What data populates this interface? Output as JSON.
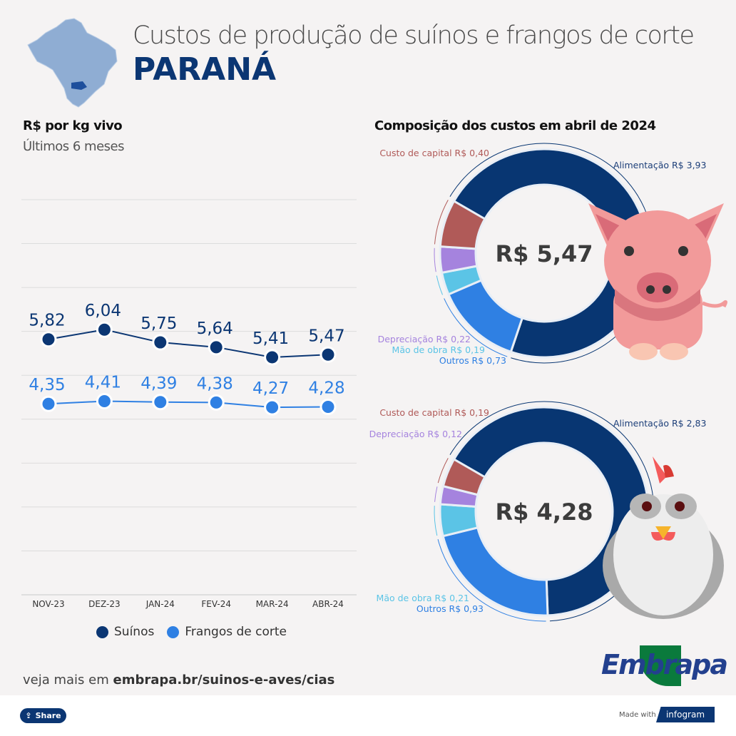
{
  "header": {
    "title": "Custos de produção de suínos e frangos de corte",
    "state": "PARANÁ",
    "map_icon": "brazil-map-parana-highlighted"
  },
  "line_section": {
    "title": "R$ por kg vivo",
    "subtitle": "Últimos 6 meses"
  },
  "donut_section": {
    "title": "Composição dos custos em abril de 2024"
  },
  "chart_data": [
    {
      "type": "line",
      "categories": [
        "NOV-23",
        "DEZ-23",
        "JAN-24",
        "FEV-24",
        "MAR-24",
        "ABR-24"
      ],
      "ylim": [
        0,
        9
      ],
      "grid": true,
      "legend_placement": "bottom",
      "series": [
        {
          "name": "Suínos",
          "color": "#0b3673",
          "values": [
            5.82,
            6.04,
            5.75,
            5.64,
            5.41,
            5.47
          ],
          "labels": [
            "5,82",
            "6,04",
            "5,75",
            "5,64",
            "5,41",
            "5,47"
          ]
        },
        {
          "name": "Frangos de corte",
          "color": "#2f80e3",
          "values": [
            4.35,
            4.41,
            4.39,
            4.38,
            4.27,
            4.28
          ],
          "labels": [
            "4,35",
            "4,41",
            "4,39",
            "4,38",
            "4,27",
            "4,28"
          ]
        }
      ]
    },
    {
      "type": "pie",
      "donut": true,
      "center_label": "R$ 5,47",
      "illustration": "pig",
      "slices": [
        {
          "name": "Alimentação",
          "value": 3.93,
          "label": "Alimentação R$ 3,93",
          "color": "#083672"
        },
        {
          "name": "Outros",
          "value": 0.73,
          "label": "Outros R$ 0,73",
          "color": "#2f80e3"
        },
        {
          "name": "Mão de obra",
          "value": 0.19,
          "label": "Mão de obra R$ 0,19",
          "color": "#5bc4e6"
        },
        {
          "name": "Depreciação",
          "value": 0.22,
          "label": "Depreciação R$ 0,22",
          "color": "#a583de"
        },
        {
          "name": "Custo de capital",
          "value": 0.4,
          "label": "Custo de capital R$ 0,40",
          "color": "#b05a58"
        }
      ]
    },
    {
      "type": "pie",
      "donut": true,
      "center_label": "R$ 4,28",
      "illustration": "chicken",
      "slices": [
        {
          "name": "Alimentação",
          "value": 2.83,
          "label": "Alimentação R$ 2,83",
          "color": "#083672"
        },
        {
          "name": "Outros",
          "value": 0.93,
          "label": "Outros R$ 0,93",
          "color": "#2f80e3"
        },
        {
          "name": "Mão de obra",
          "value": 0.21,
          "label": "Mão de obra R$ 0,21",
          "color": "#5bc4e6"
        },
        {
          "name": "Depreciação",
          "value": 0.12,
          "label": "Depreciação R$ 0,12",
          "color": "#a583de"
        },
        {
          "name": "Custo de capital",
          "value": 0.19,
          "label": "Custo de capital R$ 0,19",
          "color": "#b05a58"
        }
      ]
    }
  ],
  "footer": {
    "more_prefix": "veja mais em",
    "more_link": "embrapa.br/suinos-e-aves/cias",
    "logo_text": "Embrapa",
    "share_label": "Share",
    "made_with": "Made with",
    "infogram": "infogram"
  }
}
